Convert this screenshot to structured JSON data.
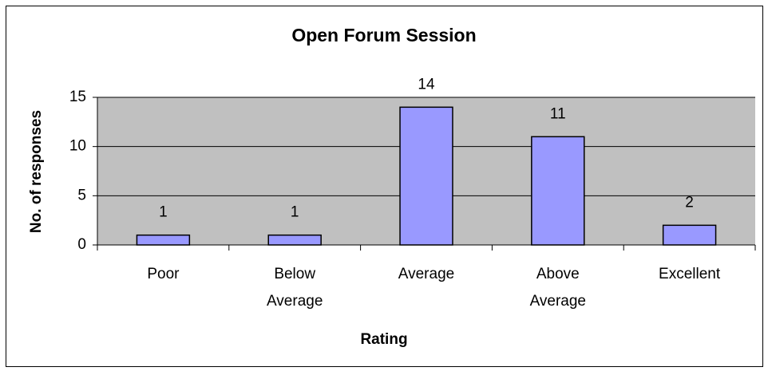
{
  "chart_data": {
    "type": "bar",
    "title": "Open Forum Session",
    "x_label": "Rating",
    "y_label": "No. of responses",
    "categories": [
      "Poor",
      "Below Average",
      "Average",
      "Above Average",
      "Excellent"
    ],
    "values": [
      1,
      1,
      14,
      11,
      2
    ],
    "color": "#9999ff",
    "ylim": [
      0,
      15
    ],
    "yticks": [
      0,
      5,
      10,
      15
    ],
    "grid": true
  }
}
